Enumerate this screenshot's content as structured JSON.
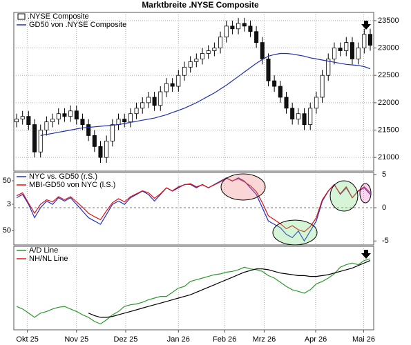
{
  "chart_data": [
    {
      "type": "candlestick",
      "title": "Marktbreite .NYSE Composite",
      "name": ".NYSE Composite",
      "open": [
        21650,
        21700,
        21750,
        21600,
        21100,
        21500,
        21650,
        21700,
        21800,
        21750,
        21850,
        21700,
        21600,
        21400,
        21200,
        21000,
        21300,
        21600,
        21700,
        21650,
        21800,
        21900,
        22000,
        22100,
        21950,
        22200,
        22350,
        22300,
        22500,
        22650,
        22750,
        22800,
        22900,
        22950,
        23000,
        23200,
        23400,
        23350,
        23450,
        23400,
        23300,
        23100,
        22800,
        22400,
        22300,
        22100,
        21900,
        21700,
        21800,
        21600,
        21900,
        22100,
        22500,
        22800,
        23000,
        22950,
        23100,
        22800,
        23000,
        23250
      ],
      "high": [
        21800,
        21850,
        21850,
        21700,
        21600,
        21750,
        21800,
        21900,
        21900,
        21950,
        21950,
        21800,
        21700,
        21500,
        21300,
        21400,
        21700,
        21800,
        21800,
        21900,
        22000,
        22100,
        22200,
        22200,
        22300,
        22450,
        22450,
        22600,
        22750,
        22850,
        22900,
        23000,
        23050,
        23100,
        23300,
        23500,
        23500,
        23550,
        23550,
        23500,
        23400,
        23200,
        22900,
        22500,
        22400,
        22200,
        22000,
        21900,
        21900,
        22000,
        22200,
        22600,
        22900,
        23100,
        23100,
        23200,
        23200,
        23100,
        23350,
        23350
      ],
      "low": [
        21550,
        21600,
        21500,
        21000,
        21000,
        21400,
        21550,
        21600,
        21650,
        21650,
        21600,
        21500,
        21300,
        21100,
        20900,
        20900,
        21200,
        21500,
        21550,
        21550,
        21700,
        21800,
        21900,
        21850,
        21850,
        22100,
        22200,
        22200,
        22400,
        22550,
        22650,
        22700,
        22800,
        22850,
        22900,
        23100,
        23250,
        23250,
        23300,
        23200,
        23000,
        22700,
        22300,
        22200,
        22000,
        21800,
        21600,
        21600,
        21500,
        21500,
        21800,
        22000,
        22400,
        22700,
        22850,
        22850,
        22700,
        22700,
        22900,
        22950
      ],
      "close": [
        21700,
        21750,
        21600,
        21100,
        21500,
        21650,
        21700,
        21800,
        21750,
        21850,
        21700,
        21600,
        21400,
        21200,
        21000,
        21300,
        21600,
        21700,
        21650,
        21800,
        21900,
        22000,
        22100,
        21950,
        22200,
        22350,
        22300,
        22500,
        22650,
        22750,
        22800,
        22900,
        22950,
        23000,
        23200,
        23400,
        23350,
        23450,
        23400,
        23300,
        23100,
        22800,
        22400,
        22300,
        22100,
        21900,
        21700,
        21800,
        21600,
        21900,
        22100,
        22500,
        22800,
        23000,
        22950,
        23100,
        22800,
        23000,
        23250,
        23050
      ],
      "series": [
        {
          "name": "GD50 von .NYSE Composite",
          "color": "#1f2fb0",
          "values": [
            null,
            null,
            null,
            null,
            21400,
            21420,
            21440,
            21460,
            21480,
            21500,
            21520,
            21540,
            21550,
            21560,
            21570,
            21580,
            21590,
            21600,
            21620,
            21640,
            21660,
            21680,
            21700,
            21720,
            21750,
            21780,
            21820,
            21860,
            21900,
            21950,
            22000,
            22060,
            22120,
            22180,
            22250,
            22320,
            22400,
            22480,
            22560,
            22640,
            22720,
            22790,
            22850,
            22880,
            22900,
            22900,
            22890,
            22870,
            22850,
            22820,
            22800,
            22780,
            22760,
            22740,
            22720,
            22700,
            22690,
            22680,
            22660,
            22620
          ]
        }
      ],
      "xlim": [
        0,
        59
      ],
      "ylim": [
        20750,
        23650
      ],
      "yticks": [
        21000,
        21500,
        22000,
        22500,
        23000,
        23500
      ],
      "grid": true
    },
    {
      "type": "line",
      "series": [
        {
          "name": "NYC vs. GD50 (r.S.)",
          "color": "#1f2fd0",
          "axis": "y2",
          "values": [
            1.5,
            2,
            0.5,
            -1.5,
            0,
            1,
            0.5,
            1.5,
            1,
            1.5,
            0.5,
            -0.5,
            -1.5,
            -2,
            -2.5,
            -1,
            0.5,
            1,
            0.5,
            1.5,
            2,
            2.5,
            2,
            1,
            2,
            3,
            2.5,
            3,
            3.5,
            3.5,
            3,
            3.5,
            3,
            3.5,
            4,
            4.5,
            4,
            4.5,
            4,
            3,
            2,
            0,
            -2,
            -2.5,
            -3,
            -4,
            -4.5,
            -3.5,
            -5,
            -3.5,
            -2,
            1,
            2.5,
            3.5,
            2,
            3,
            1.5,
            2.5,
            3,
            2
          ]
        },
        {
          "name": "MBI-GD50 von NYC (l.S.)",
          "color": "#e01010",
          "values": [
            20,
            26,
            5,
            -15,
            3,
            12,
            8,
            18,
            12,
            18,
            8,
            -3,
            -15,
            -22,
            -28,
            -10,
            6,
            14,
            8,
            18,
            24,
            30,
            26,
            15,
            24,
            36,
            30,
            38,
            42,
            44,
            38,
            42,
            36,
            42,
            48,
            55,
            50,
            54,
            48,
            40,
            28,
            6,
            -20,
            -28,
            -36,
            -46,
            -40,
            -48,
            -52,
            -42,
            -24,
            12,
            30,
            42,
            24,
            38,
            16,
            30,
            38,
            26
          ]
        }
      ],
      "xlim": [
        0,
        59
      ],
      "ylim": [
        -78.6,
        66.6
      ],
      "yticks": [
        50,
        3,
        {
          "value": -50,
          "label": "50"
        }
      ],
      "y2lim": [
        -5.6,
        5.3
      ],
      "y2ticks": [
        5,
        0,
        -5
      ],
      "zero_line": true,
      "grid": true
    },
    {
      "type": "line",
      "series": [
        {
          "name": "A/D Line",
          "color": "#2a9a2a",
          "values": [
            28,
            25,
            20,
            15,
            20,
            22,
            25,
            27,
            28,
            25,
            22,
            18,
            15,
            10,
            7,
            12,
            18,
            22,
            28,
            30,
            31,
            33,
            36,
            38,
            40,
            40,
            45,
            50,
            52,
            58,
            60,
            62,
            64,
            66,
            67,
            69,
            70,
            72,
            75,
            73,
            72,
            70,
            65,
            62,
            57,
            52,
            48,
            46,
            44,
            48,
            55,
            58,
            62,
            67,
            75,
            78,
            80,
            78,
            83,
            85
          ]
        },
        {
          "name": "NH/NL Line",
          "color": "#000000",
          "legend_color": "#e01010",
          "values": [
            null,
            null,
            null,
            null,
            null,
            null,
            null,
            null,
            null,
            null,
            null,
            null,
            20,
            17,
            15,
            15,
            16,
            18,
            20,
            22,
            24,
            26,
            28,
            30,
            32,
            34,
            36,
            38,
            40,
            42,
            45,
            48,
            51,
            54,
            57,
            60,
            63,
            66,
            69,
            71,
            73,
            73,
            72,
            70,
            68,
            67,
            66,
            65,
            65,
            64,
            64,
            65,
            66,
            68,
            70,
            72,
            74,
            77,
            80,
            83
          ]
        }
      ],
      "xlim": [
        0,
        59
      ],
      "ylim": [
        0,
        100
      ],
      "grid": true,
      "xticks": [
        {
          "value": 1.8,
          "label": "Okt 25"
        },
        {
          "value": 10,
          "label": "Nov 25"
        },
        {
          "value": 18.2,
          "label": "Dez 25"
        },
        {
          "value": 27,
          "label": "Jan 26"
        },
        {
          "value": 34.7,
          "label": "Feb 26"
        },
        {
          "value": 41.3,
          "label": "Mrz 26"
        },
        {
          "value": 49.9,
          "label": "Apr 26"
        },
        {
          "value": 57.9,
          "label": "Mai 26"
        }
      ]
    }
  ]
}
